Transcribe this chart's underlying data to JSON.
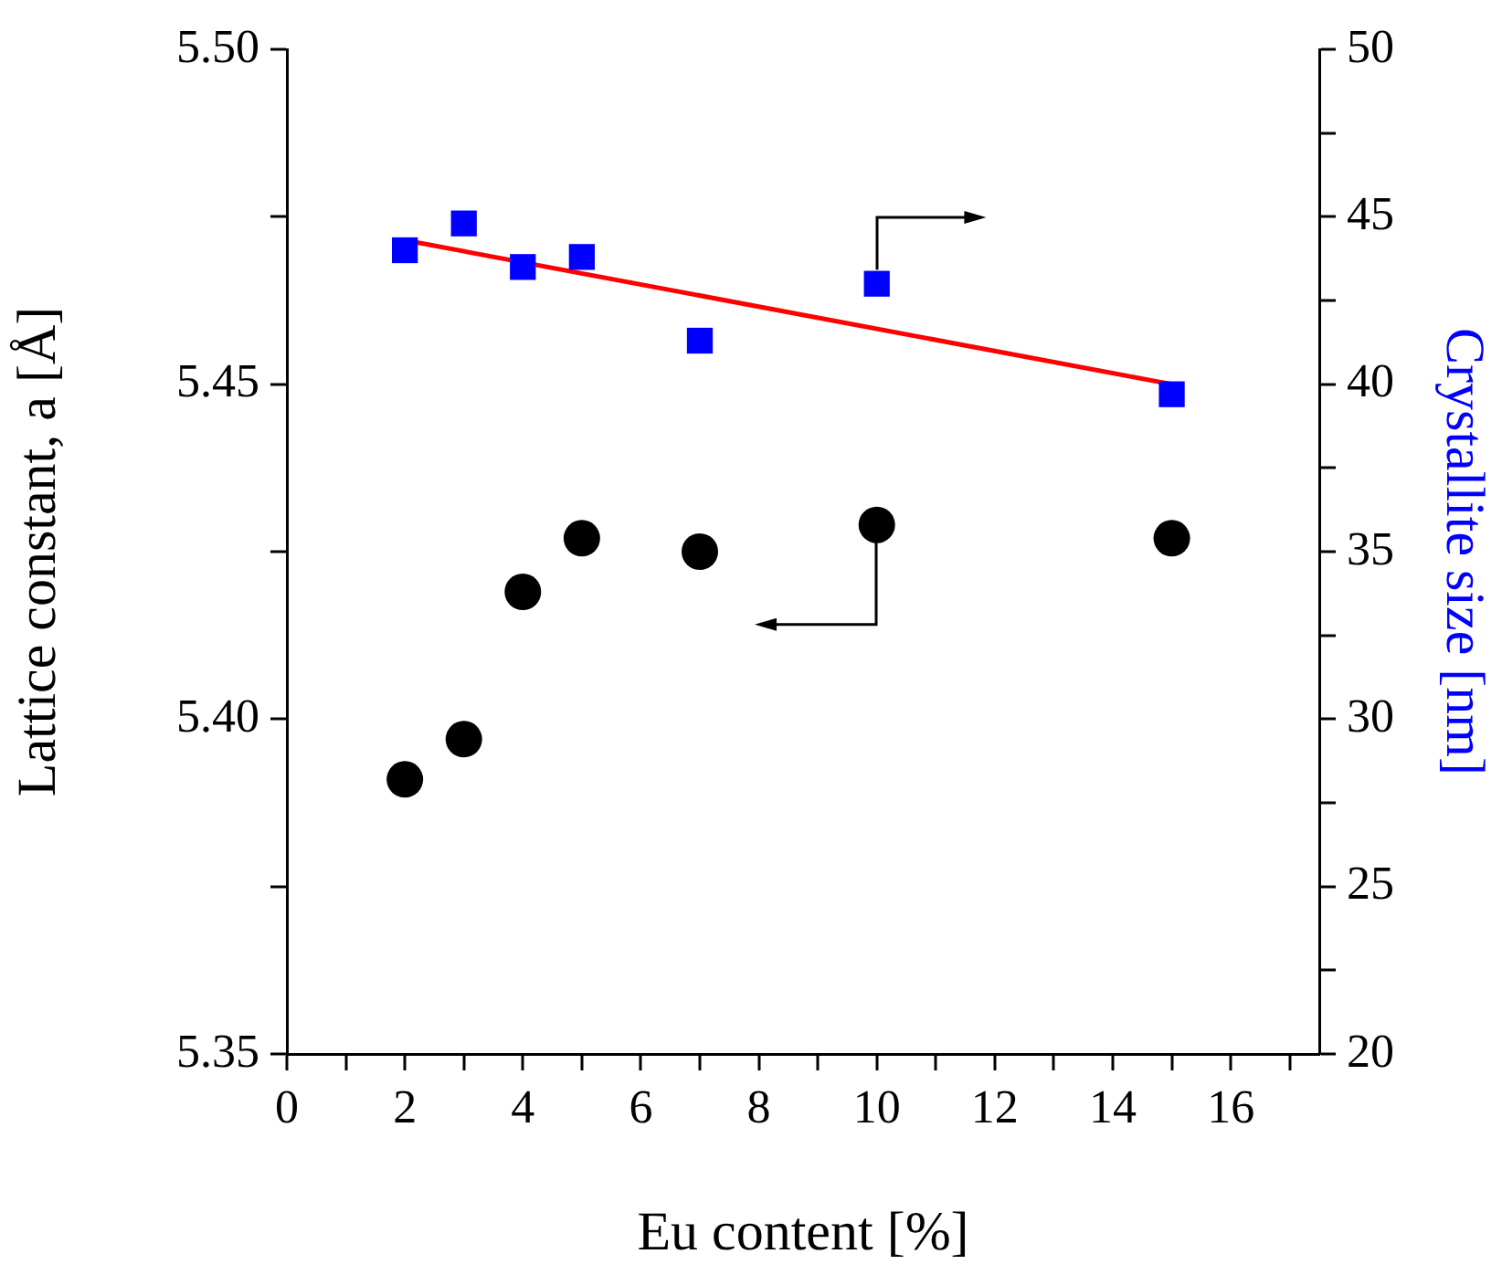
{
  "chart_data": {
    "type": "scatter",
    "xlabel": "Eu content [%]",
    "ylabel": "Lattice constant, a [Å]",
    "y2label": "Crystallite size [nm]",
    "xlim": [
      0,
      17.5
    ],
    "xticks": [
      0,
      {
        "value": 1,
        "label": null
      },
      2,
      {
        "value": 3,
        "label": null
      },
      4,
      {
        "value": 5,
        "label": null
      },
      6,
      {
        "value": 7,
        "label": null
      },
      8,
      {
        "value": 9,
        "label": null
      },
      10,
      {
        "value": 11,
        "label": null
      },
      12,
      {
        "value": 13,
        "label": null
      },
      14,
      {
        "value": 15,
        "label": null
      },
      16,
      {
        "value": 17,
        "label": null
      }
    ],
    "ylim": [
      5.35,
      5.5
    ],
    "yticks": [
      5.35,
      {
        "value": 5.375,
        "label": null
      },
      {
        "value": 5.4,
        "label": "5.40"
      },
      {
        "value": 5.425,
        "label": null
      },
      5.45,
      {
        "value": 5.475,
        "label": null
      },
      {
        "value": 5.5,
        "label": "5.50"
      }
    ],
    "y2lim": [
      20,
      50
    ],
    "y2ticks": [
      20,
      {
        "value": 22.5,
        "label": null
      },
      25,
      {
        "value": 27.5,
        "label": null
      },
      30,
      {
        "value": 32.5,
        "label": null
      },
      35,
      {
        "value": 37.5,
        "label": null
      },
      40,
      {
        "value": 42.5,
        "label": null
      },
      45,
      {
        "value": 47.5,
        "label": null
      },
      50
    ],
    "grid": false,
    "legend": false,
    "series": [
      {
        "marker": "circle",
        "color": "#000000",
        "x": [
          2,
          3,
          4,
          5,
          7,
          10,
          15
        ],
        "values": [
          5.391,
          5.397,
          5.419,
          5.427,
          5.425,
          5.429,
          5.427
        ]
      },
      {
        "marker": "square",
        "color": "#0000ff",
        "axis": "y2",
        "x": [
          2,
          3,
          4,
          5,
          7,
          10,
          15
        ],
        "values": [
          44.0,
          44.8,
          43.5,
          43.8,
          41.3,
          43.0,
          39.7
        ]
      },
      {
        "type": "line",
        "marker": "none",
        "color": "#ff0000",
        "axis": "y2",
        "x": [
          2,
          15
        ],
        "values": [
          44.3,
          40.0
        ]
      }
    ]
  }
}
